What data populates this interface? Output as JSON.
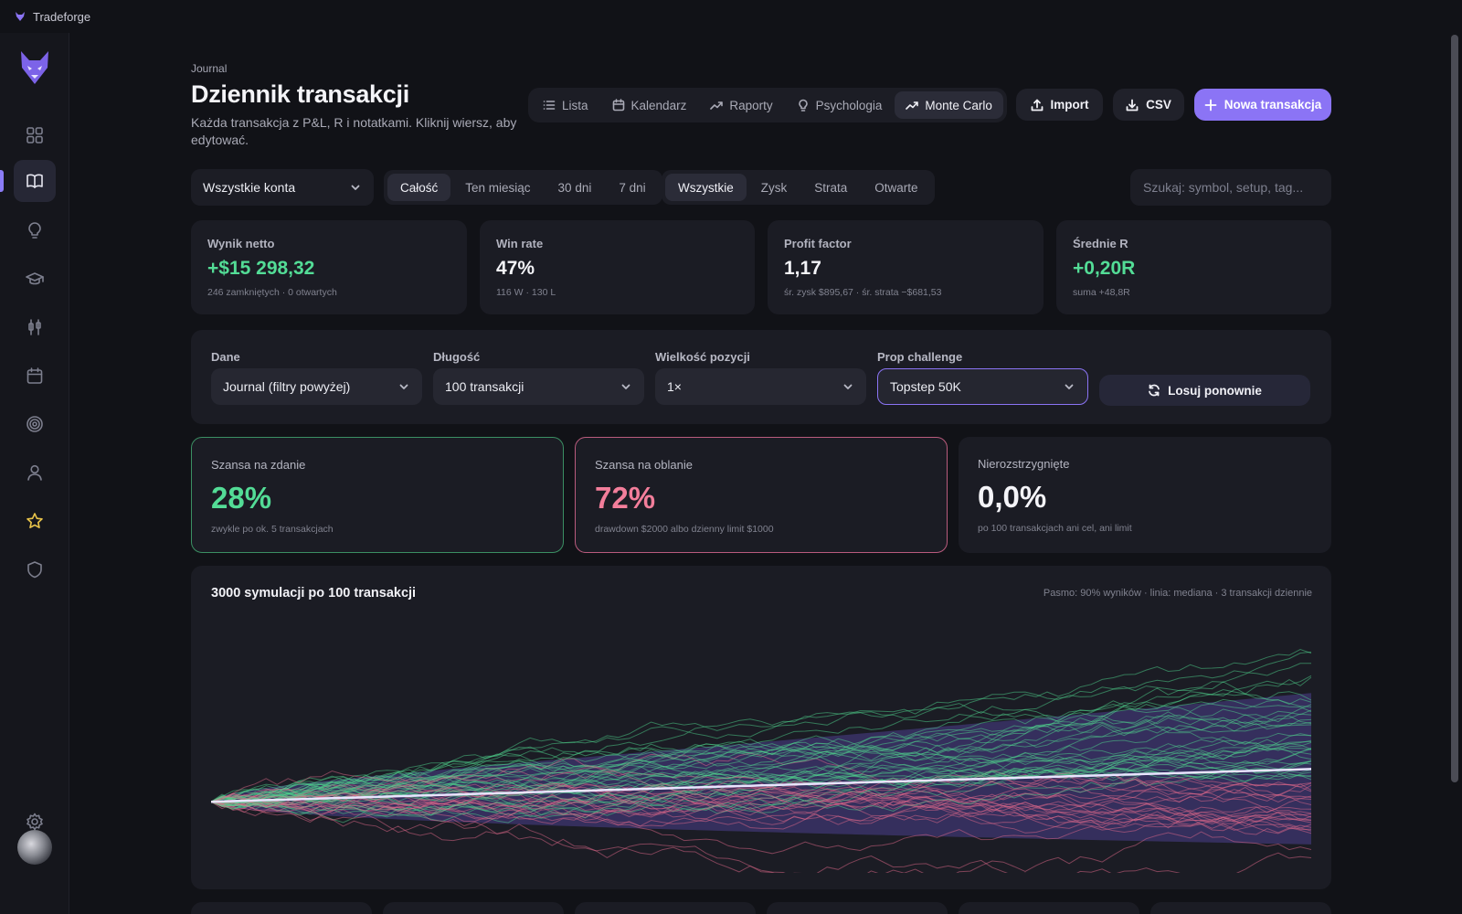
{
  "app": {
    "name": "Tradeforge"
  },
  "sidebar": {
    "items": [
      {
        "name": "dashboard",
        "icon": "grid-icon"
      },
      {
        "name": "journal",
        "icon": "book-icon",
        "active": true
      },
      {
        "name": "insights",
        "icon": "lightbulb-icon"
      },
      {
        "name": "learning",
        "icon": "graduation-cap-icon"
      },
      {
        "name": "strategies",
        "icon": "candlestick-icon"
      },
      {
        "name": "calendar",
        "icon": "calendar-icon"
      },
      {
        "name": "goals",
        "icon": "target-icon"
      },
      {
        "name": "profile",
        "icon": "user-icon"
      },
      {
        "name": "favorites",
        "icon": "star-icon"
      },
      {
        "name": "security",
        "icon": "shield-icon"
      }
    ],
    "settings_icon": "gear-icon"
  },
  "header": {
    "breadcrumb": "Journal",
    "title": "Dziennik transakcji",
    "description": "Każda transakcja z P&L, R i notatkami. Kliknij wiersz, aby edytować."
  },
  "view_tabs": [
    {
      "label": "Lista",
      "icon": "list-icon"
    },
    {
      "label": "Kalendarz",
      "icon": "calendar-icon"
    },
    {
      "label": "Raporty",
      "icon": "trend-icon"
    },
    {
      "label": "Psychologia",
      "icon": "lightbulb-icon"
    },
    {
      "label": "Monte Carlo",
      "icon": "trend-icon",
      "active": true
    }
  ],
  "actions": {
    "import": "Import",
    "csv": "CSV",
    "new_trade": "Nowa transakcja"
  },
  "filters": {
    "account": "Wszystkie konta",
    "period": [
      "Całość",
      "Ten miesiąc",
      "30 dni",
      "7 dni"
    ],
    "period_active": "Całość",
    "outcome": [
      "Wszystkie",
      "Zysk",
      "Strata",
      "Otwarte"
    ],
    "outcome_active": "Wszystkie",
    "search_placeholder": "Szukaj: symbol, setup, tag..."
  },
  "stats": [
    {
      "label": "Wynik netto",
      "value": "+$15 298,32",
      "sub": "246 zamkniętych · 0 otwartych",
      "tone": "green"
    },
    {
      "label": "Win rate",
      "value": "47%",
      "sub": "116 W · 130 L",
      "tone": "white"
    },
    {
      "label": "Profit factor",
      "value": "1,17",
      "sub": "śr. zysk $895,67 · śr. strata −$681,53",
      "tone": "white"
    },
    {
      "label": "Średnie R",
      "value": "+0,20R",
      "sub": "suma +48,8R",
      "tone": "green"
    }
  ],
  "simulation_config": {
    "data_label": "Dane",
    "data_value": "Journal (filtry powyżej)",
    "length_label": "Długość",
    "length_value": "100 transakcji",
    "size_label": "Wielkość pozycji",
    "size_value": "1×",
    "prop_label": "Prop challenge",
    "prop_value": "Topstep 50K",
    "reroll": "Losuj ponownie"
  },
  "outcomes": [
    {
      "label": "Szansa na zdanie",
      "value": "28%",
      "sub": "zwykle po ok. 5 transakcjach",
      "tone": "green"
    },
    {
      "label": "Szansa na oblanie",
      "value": "72%",
      "sub": "drawdown $2000 albo dzienny limit $1000",
      "tone": "red"
    },
    {
      "label": "Nierozstrzygnięte",
      "value": "0,0%",
      "sub": "po 100 transakcjach ani cel, ani limit",
      "tone": "white"
    }
  ],
  "chart": {
    "title": "3000 symulacji po 100 transakcji",
    "note": "Pasmo: 90% wyników · linia: mediana · 3 transakcji dziennie"
  },
  "chart_data": {
    "type": "line",
    "title": "3000 symulacji po 100 transakcji",
    "n_simulations": 3000,
    "n_trades": 100,
    "x_range": [
      0,
      100
    ],
    "band": {
      "label": "90% wyników",
      "upper_end": 7650,
      "lower_end": -3000
    },
    "median_end": 2300,
    "paths_color_pass": "#4fd58e",
    "paths_color_fail": "#e46a8c",
    "band_color": "#4a3f8c",
    "median_color": "#e9e4ff"
  },
  "colors": {
    "accent": "#8b74f5",
    "green": "#53dc96",
    "red": "#f37e9b",
    "star": "#e9c44a"
  }
}
